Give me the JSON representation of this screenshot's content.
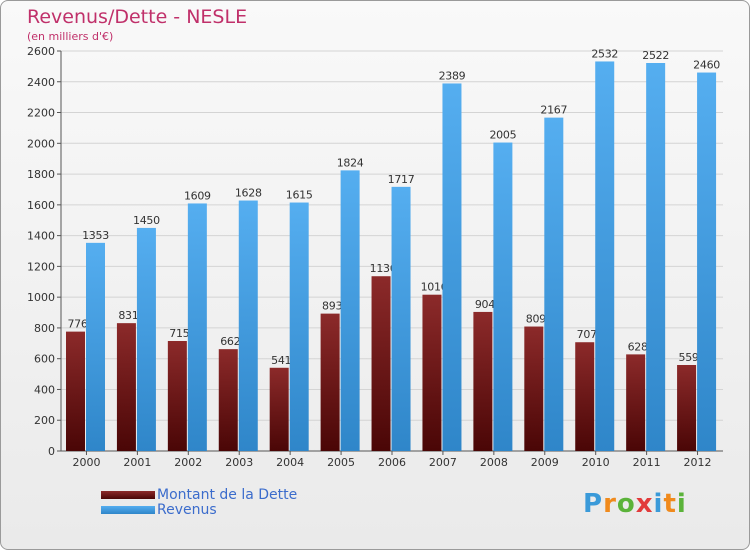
{
  "header": {
    "title": "Revenus/Dette - NESLE",
    "subtitle": "(en milliers d'€)"
  },
  "chart_data": {
    "type": "bar",
    "title": "Revenus/Dette - NESLE",
    "subtitle": "(en milliers d'€)",
    "categories": [
      "2000",
      "2001",
      "2002",
      "2003",
      "2004",
      "2005",
      "2006",
      "2007",
      "2008",
      "2009",
      "2010",
      "2011",
      "2012"
    ],
    "series": [
      {
        "name": "Montant de la Dette",
        "color": "#7a1a1a",
        "values": [
          776,
          831,
          715,
          662,
          541,
          893,
          1136,
          1016,
          904,
          809,
          707,
          628,
          559
        ]
      },
      {
        "name": "Revenus",
        "color": "#3f9ee0",
        "values": [
          1353,
          1450,
          1609,
          1628,
          1615,
          1824,
          1717,
          2389,
          2005,
          2167,
          2532,
          2522,
          2460
        ]
      }
    ],
    "ylim": [
      0,
      2600
    ],
    "yticks": [
      "0",
      "200",
      "400",
      "600",
      "800",
      "1000",
      "1200",
      "1400",
      "1600",
      "1800",
      "2000",
      "2200",
      "2400",
      "2600"
    ],
    "grid": true,
    "legend_position": "bottom-left"
  },
  "legend": {
    "items": [
      {
        "label": "Montant de la Dette",
        "color": "#7a1a1a"
      },
      {
        "label": "Revenus",
        "color": "#3f9ee0"
      }
    ]
  },
  "brand": {
    "letters": [
      "P",
      "r",
      "o",
      "x",
      "i",
      "t",
      "i"
    ],
    "colors": [
      "#3a9ad9",
      "#f08a1c",
      "#5bb33a",
      "#e23b3b",
      "#3a9ad9",
      "#f08a1c",
      "#5bb33a"
    ]
  }
}
